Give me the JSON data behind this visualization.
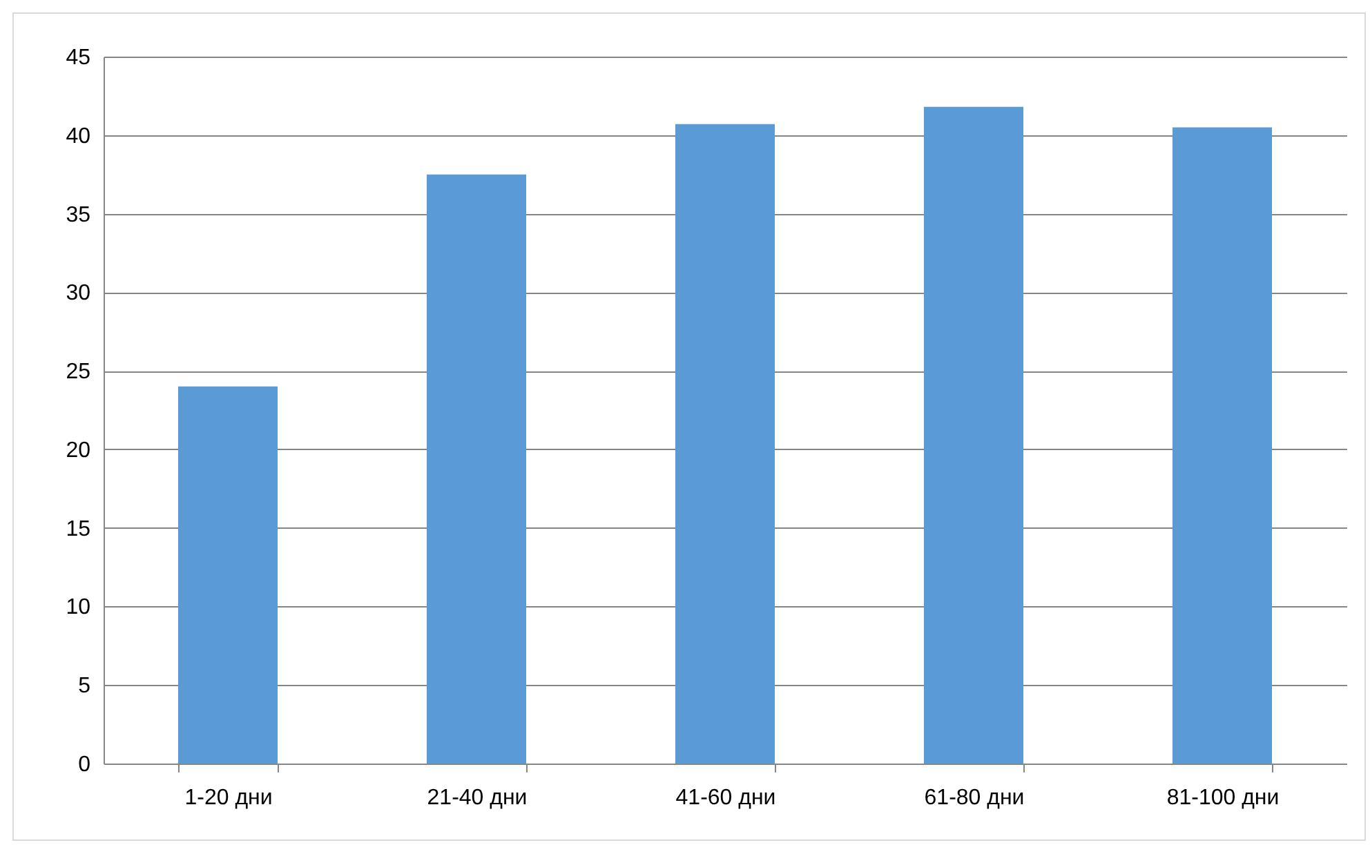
{
  "chart_data": {
    "type": "bar",
    "categories": [
      "1-20 дни",
      "21-40 дни",
      "41-60 дни",
      "61-80 дни",
      "81-100 дни"
    ],
    "values": [
      24,
      37.5,
      40.7,
      41.8,
      40.5
    ],
    "color": "#5b9bd5",
    "ylim": [
      0,
      45
    ],
    "yticks": [
      0,
      5,
      10,
      15,
      20,
      25,
      30,
      35,
      40,
      45
    ],
    "grid": "y"
  }
}
